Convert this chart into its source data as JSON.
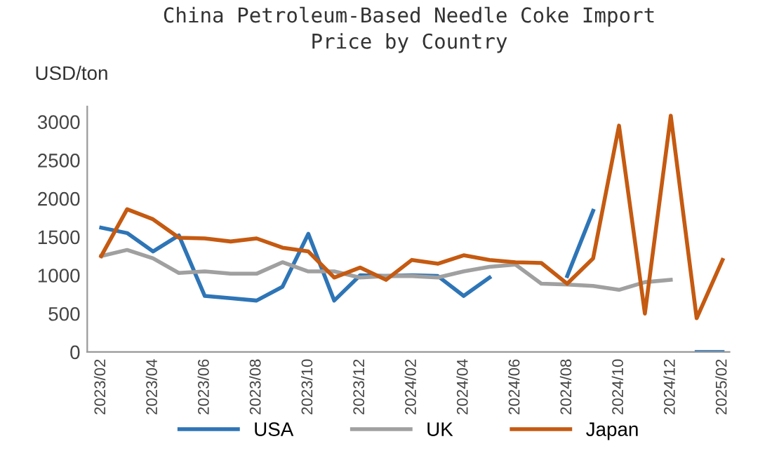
{
  "chart_data": {
    "type": "line",
    "title": "China Petroleum-Based Needle Coke Import\nPrice by Country",
    "ylabel": "USD/ton",
    "categories": [
      "2023/02",
      null,
      "2023/04",
      null,
      "2023/06",
      null,
      "2023/08",
      null,
      "2023/10",
      null,
      "2023/12",
      null,
      "2024/02",
      null,
      "2024/04",
      null,
      "2024/06",
      null,
      "2024/08",
      null,
      "2024/10",
      null,
      "2024/12",
      null,
      "2025/02"
    ],
    "series": [
      {
        "name": "USA",
        "color": "#2e75b6",
        "values": [
          1620,
          1550,
          1310,
          1520,
          730,
          700,
          670,
          850,
          1540,
          670,
          1000,
          990,
          1000,
          990,
          730,
          970,
          null,
          null,
          990,
          1840,
          null,
          null,
          null,
          0,
          0
        ]
      },
      {
        "name": "UK",
        "color": "#a0a0a0",
        "values": [
          1250,
          1330,
          1220,
          1030,
          1050,
          1020,
          1020,
          1170,
          1050,
          1050,
          970,
          990,
          990,
          970,
          1050,
          1110,
          1140,
          890,
          880,
          860,
          810,
          910,
          940,
          null,
          null
        ]
      },
      {
        "name": "Japan",
        "color": "#c55a11",
        "values": [
          1250,
          1860,
          1730,
          1490,
          1480,
          1440,
          1480,
          1360,
          1310,
          970,
          1100,
          940,
          1200,
          1150,
          1260,
          1200,
          1170,
          1160,
          890,
          1220,
          2950,
          500,
          3080,
          440,
          1200
        ]
      }
    ],
    "ylim": [
      0,
      3200
    ],
    "yticks": [
      0,
      500,
      1000,
      1500,
      2000,
      2500,
      3000
    ],
    "grid": false,
    "legend": "bottom",
    "marker": "none",
    "line_style": "solid"
  }
}
